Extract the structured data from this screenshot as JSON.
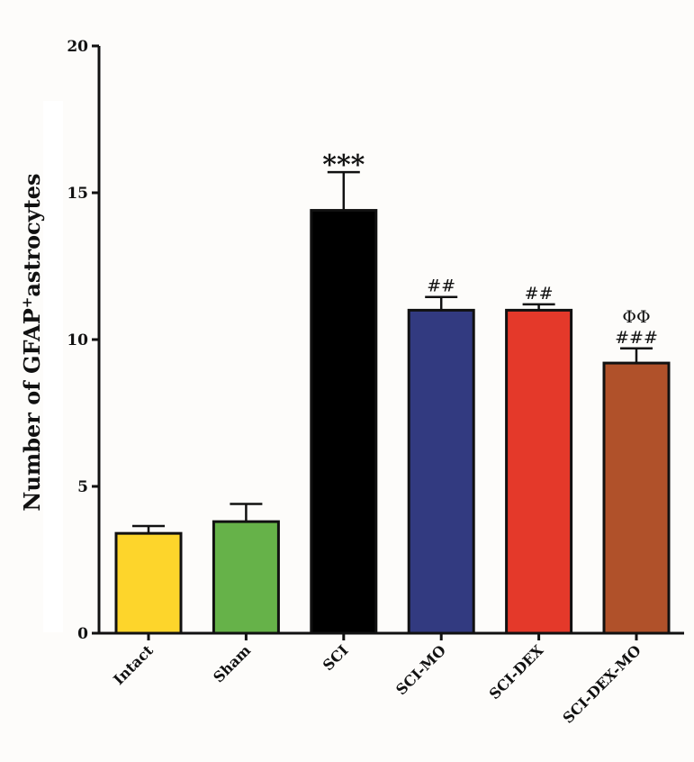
{
  "chart_data": {
    "type": "bar",
    "title": "",
    "xlabel": "",
    "ylabel": "Number of GFAP",
    "ylabel_superscript": "+",
    "ylabel_suffix": "astrocytes",
    "ylim": [
      0,
      20
    ],
    "yticks": [
      0,
      5,
      10,
      15,
      20
    ],
    "grid": false,
    "categories": [
      "Intact",
      "Sham",
      "SCI",
      "SCI-MO",
      "SCI-DEX",
      "SCI-DEX-MO"
    ],
    "values": [
      3.4,
      3.8,
      14.4,
      11.0,
      11.0,
      9.2
    ],
    "errors": [
      0.25,
      0.6,
      1.3,
      0.45,
      0.2,
      0.5
    ],
    "colors": [
      "#fdd52b",
      "#66b249",
      "#000000",
      "#323a80",
      "#e4392a",
      "#b0512a"
    ],
    "annotations": [
      {
        "category": "SCI",
        "lines": [
          "***"
        ]
      },
      {
        "category": "SCI-MO",
        "lines": [
          "##"
        ]
      },
      {
        "category": "SCI-DEX",
        "lines": [
          "##"
        ]
      },
      {
        "category": "SCI-DEX-MO",
        "lines": [
          "ΦΦ",
          "###"
        ]
      }
    ]
  }
}
